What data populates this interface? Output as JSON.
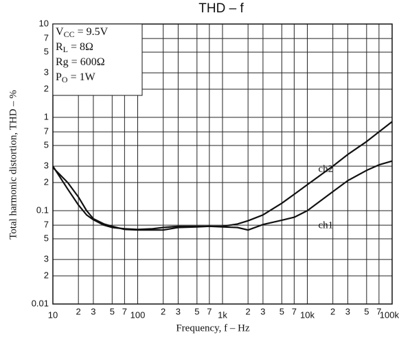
{
  "chart_data": {
    "type": "line",
    "title": "THD – f",
    "x_label": "Frequency, f – Hz",
    "y_label": "Total harmonic distortion, THD – %",
    "log_x": true,
    "log_y": true,
    "grid": true,
    "xlim": [
      10,
      100000
    ],
    "ylim": [
      0.01,
      10
    ],
    "xticks": [
      10,
      {
        "value": 20,
        "label": "2"
      },
      {
        "value": 30,
        "label": "3"
      },
      {
        "value": 50,
        "label": "5"
      },
      {
        "value": 70,
        "label": "7"
      },
      100,
      {
        "value": 200,
        "label": "2"
      },
      {
        "value": 300,
        "label": "3"
      },
      {
        "value": 500,
        "label": "5"
      },
      {
        "value": 700,
        "label": "7"
      },
      {
        "value": 1000,
        "label": "1k"
      },
      {
        "value": 2000,
        "label": "2"
      },
      {
        "value": 3000,
        "label": "3"
      },
      {
        "value": 5000,
        "label": "5"
      },
      {
        "value": 7000,
        "label": "7"
      },
      {
        "value": 10000,
        "label": "10k"
      },
      {
        "value": 20000,
        "label": "2"
      },
      {
        "value": 30000,
        "label": "3"
      },
      {
        "value": 50000,
        "label": "5"
      },
      {
        "value": 70000,
        "label": "7"
      },
      {
        "value": 100000,
        "label": "100k"
      }
    ],
    "yticks": [
      10,
      7,
      5,
      3,
      2,
      1,
      {
        "value": 0.7,
        "label": "7"
      },
      {
        "value": 0.5,
        "label": "5"
      },
      {
        "value": 0.3,
        "label": "3"
      },
      {
        "value": 0.2,
        "label": "2"
      },
      0.1,
      {
        "value": 0.07,
        "label": "7"
      },
      {
        "value": 0.05,
        "label": "5"
      },
      {
        "value": 0.03,
        "label": "3"
      },
      {
        "value": 0.02,
        "label": "2"
      },
      0.01
    ],
    "conditions": [
      {
        "main": "V",
        "sub": "CC",
        "rest": " = 9.5V"
      },
      {
        "main": "R",
        "sub": "L",
        "rest": " = 8Ω"
      },
      {
        "main": "Rg = 600Ω"
      },
      {
        "main": "P",
        "sub": "O",
        "rest": " = 1W"
      }
    ],
    "x": [
      10,
      15,
      20,
      25,
      30,
      40,
      50,
      70,
      100,
      150,
      200,
      300,
      500,
      700,
      1000,
      1500,
      2000,
      3000,
      5000,
      7000,
      10000,
      20000,
      30000,
      50000,
      70000,
      100000
    ],
    "series": [
      {
        "name": "ch1",
        "color": "#111111",
        "values": [
          0.3,
          0.17,
          0.115,
          0.09,
          0.08,
          0.07,
          0.066,
          0.064,
          0.063,
          0.064,
          0.066,
          0.068,
          0.068,
          0.068,
          0.067,
          0.066,
          0.062,
          0.071,
          0.079,
          0.085,
          0.1,
          0.16,
          0.21,
          0.27,
          0.31,
          0.34
        ]
      },
      {
        "name": "ch2",
        "color": "#111111",
        "values": [
          0.29,
          0.2,
          0.14,
          0.1,
          0.082,
          0.072,
          0.068,
          0.063,
          0.062,
          0.062,
          0.062,
          0.066,
          0.067,
          0.068,
          0.068,
          0.072,
          0.078,
          0.09,
          0.12,
          0.15,
          0.19,
          0.3,
          0.4,
          0.55,
          0.7,
          0.9
        ]
      }
    ]
  }
}
